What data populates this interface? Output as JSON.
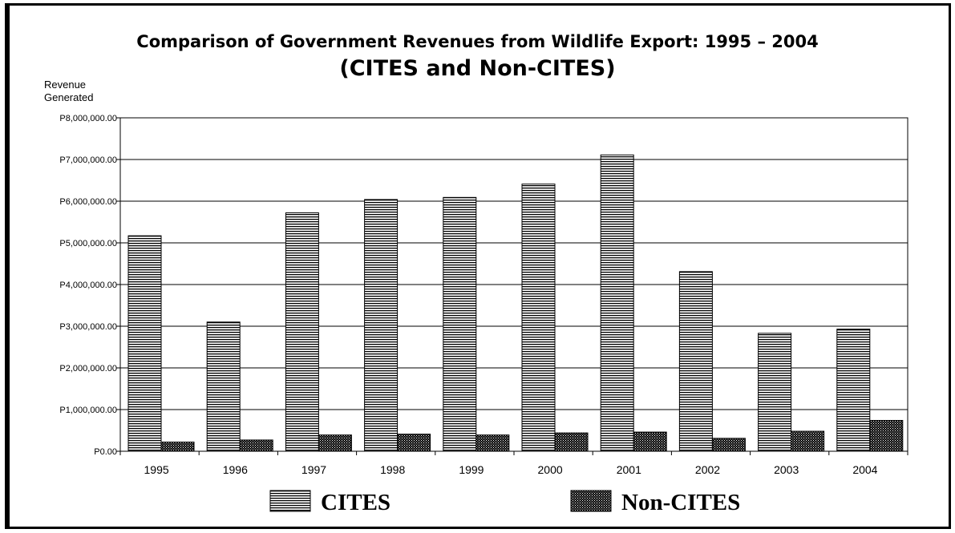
{
  "chart_data": {
    "type": "bar",
    "title": "Comparison of Government Revenues from Wildlife Export: 1995 – 2004",
    "subtitle": "(CITES and Non-CITES)",
    "ylabel": "Revenue Generated",
    "xlabel": "",
    "ylim": [
      0,
      8000000
    ],
    "y_ticks": [
      {
        "value": 0,
        "label": "P0.00"
      },
      {
        "value": 1000000,
        "label": "P1,000,000.00"
      },
      {
        "value": 2000000,
        "label": "P2,000,000.00"
      },
      {
        "value": 3000000,
        "label": "P3,000,000.00"
      },
      {
        "value": 4000000,
        "label": "P4,000,000.00"
      },
      {
        "value": 5000000,
        "label": "P5,000,000.00"
      },
      {
        "value": 6000000,
        "label": "P6,000,000.00"
      },
      {
        "value": 7000000,
        "label": "P7,000,000.00"
      },
      {
        "value": 8000000,
        "label": "P8,000,000.00"
      }
    ],
    "grid": true,
    "legend_position": "bottom",
    "categories": [
      "1995",
      "1996",
      "1997",
      "1998",
      "1999",
      "2000",
      "2001",
      "2002",
      "2003",
      "2004"
    ],
    "series": [
      {
        "name": "CITES",
        "pattern": "horizontal-lines",
        "values": [
          5170000,
          3100000,
          5720000,
          6040000,
          6090000,
          6410000,
          7110000,
          4310000,
          2830000,
          2930000
        ]
      },
      {
        "name": "Non-CITES",
        "pattern": "dotted",
        "values": [
          220000,
          270000,
          390000,
          410000,
          390000,
          440000,
          460000,
          310000,
          480000,
          740000
        ]
      }
    ],
    "colors": {
      "bar_outline": "#000000",
      "pattern_ink": "#000000",
      "background": "#ffffff"
    }
  }
}
